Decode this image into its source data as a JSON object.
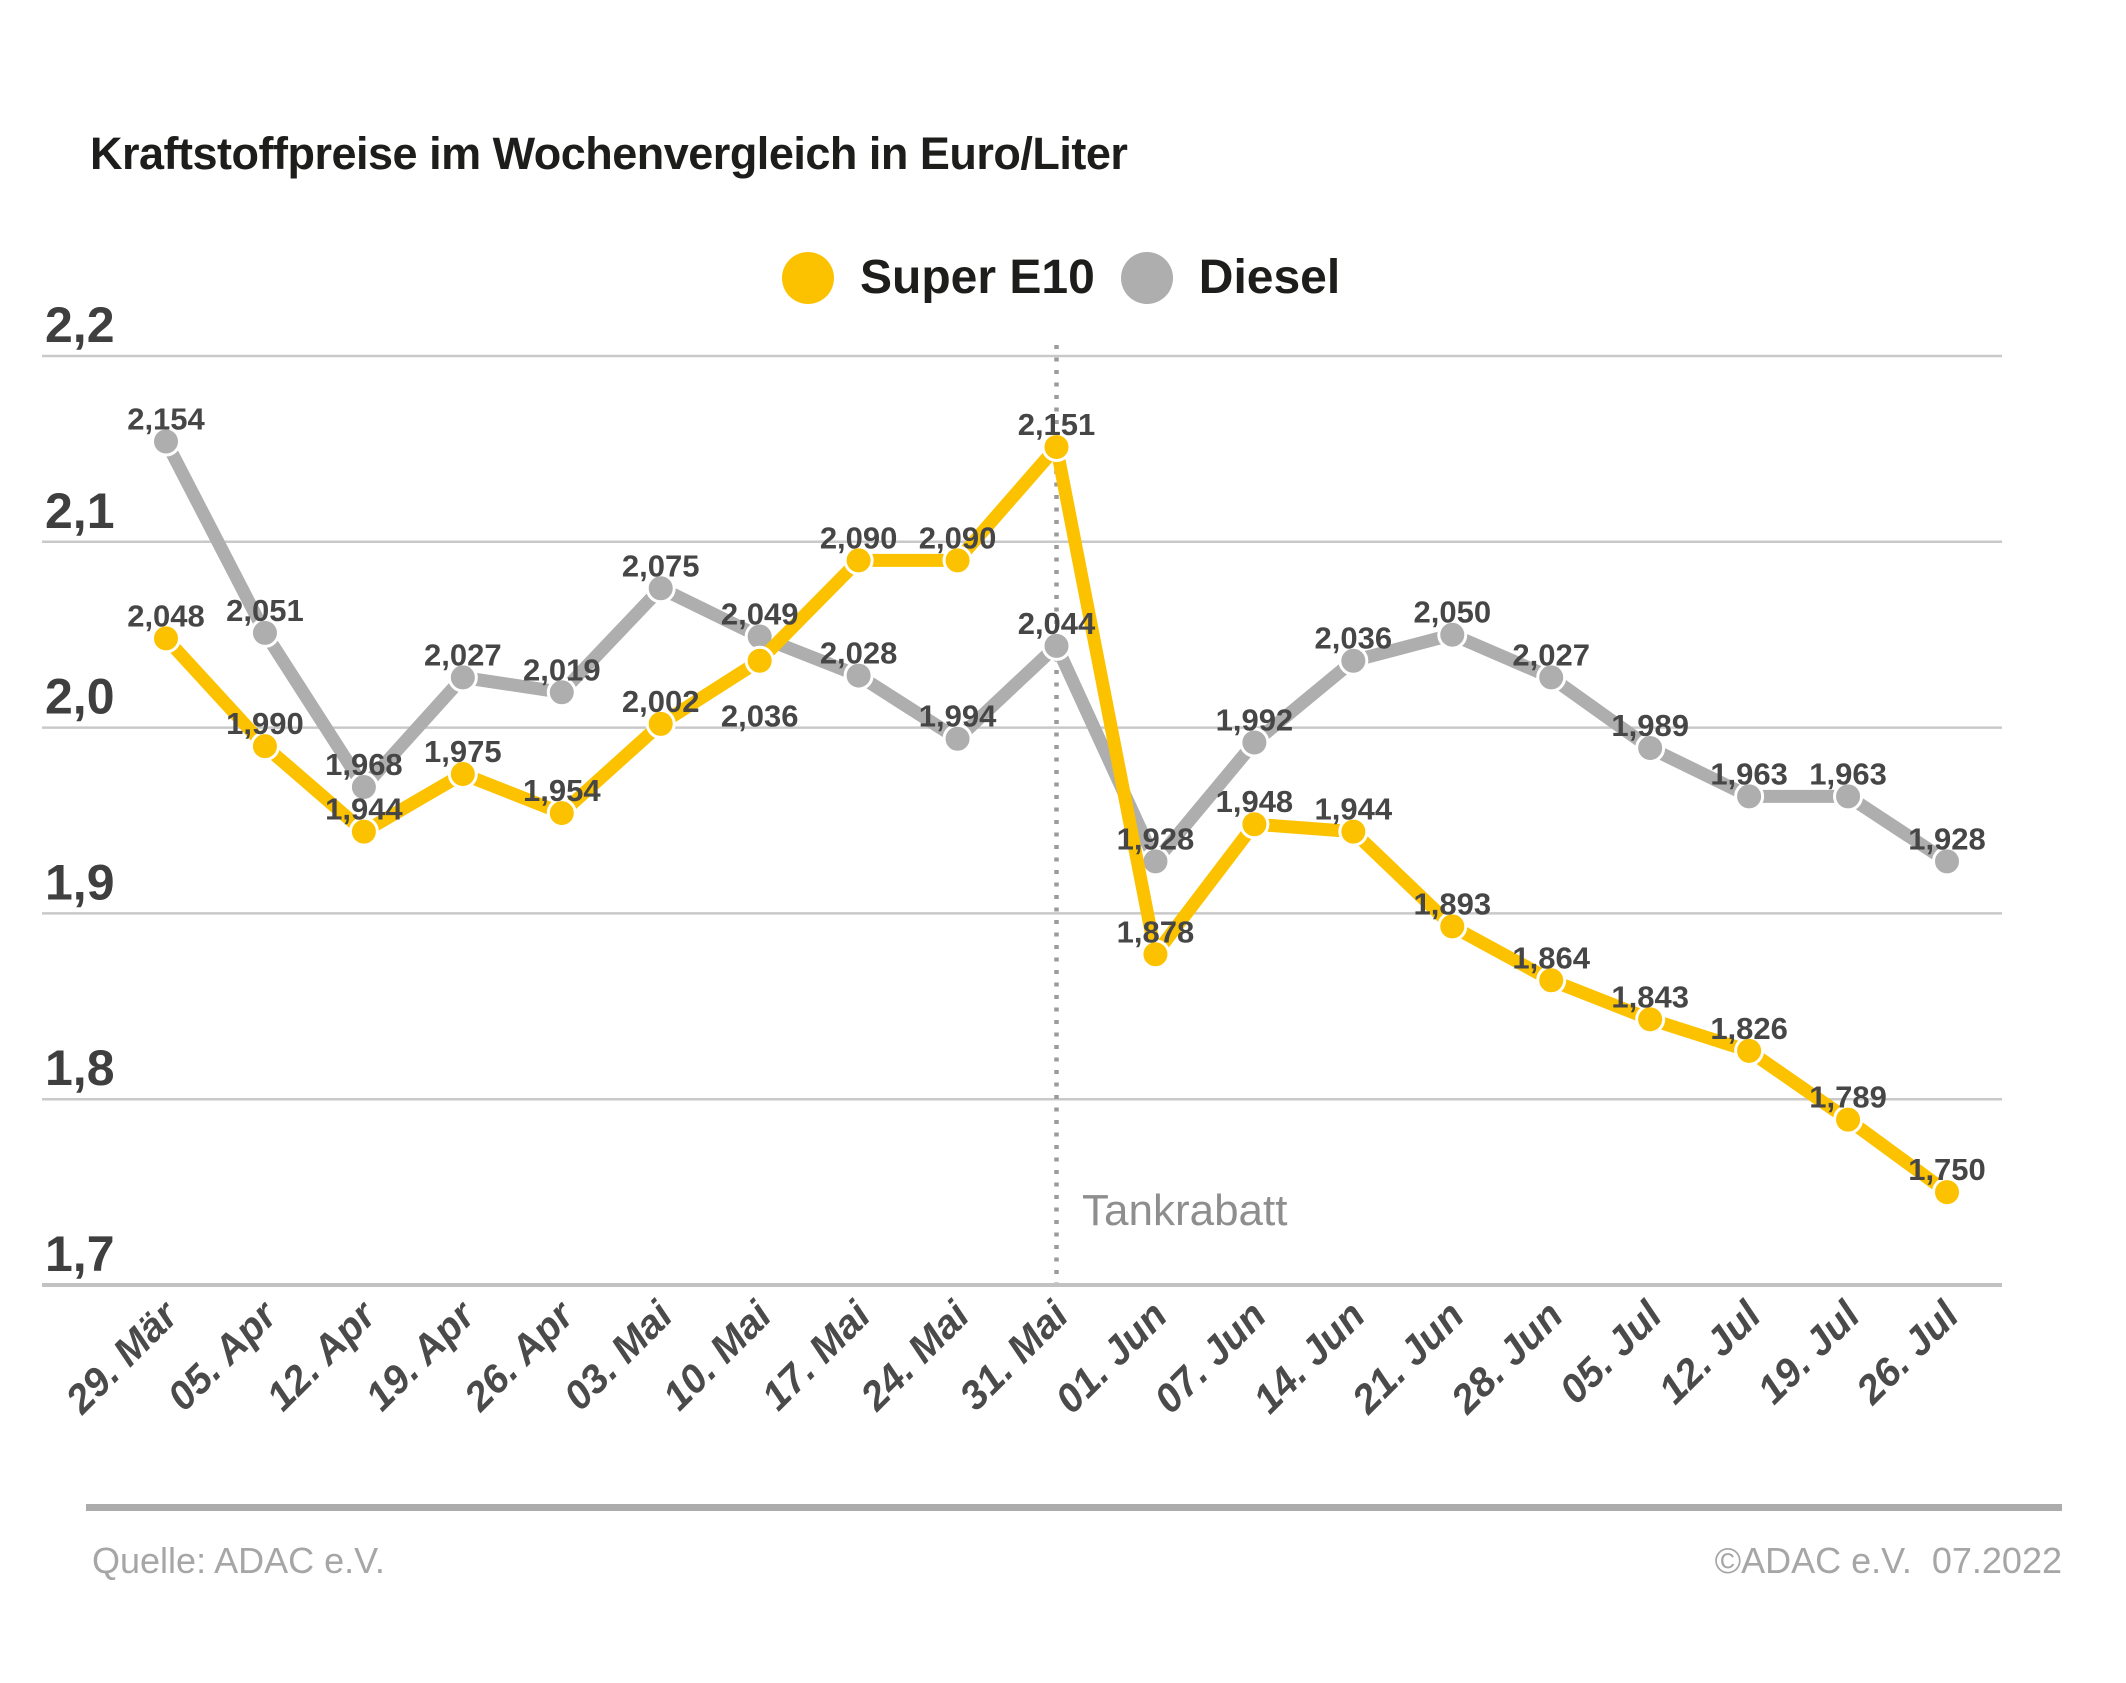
{
  "chart_data": {
    "type": "line",
    "title": "Kraftstoffpreise im Wochenvergleich in Euro/Liter",
    "categories": [
      "29. Mär",
      "05. Apr",
      "12. Apr",
      "19. Apr",
      "26. Apr",
      "03. Mai",
      "10. Mai",
      "17. Mai",
      "24. Mai",
      "31. Mai",
      "01. Jun",
      "07. Jun",
      "14. Jun",
      "21. Jun",
      "28. Jun",
      "05. Jul",
      "12. Jul",
      "19. Jul",
      "26. Jul"
    ],
    "series": [
      {
        "name": "Super E10",
        "color": "#fcc200",
        "values": [
          2.048,
          1.99,
          1.944,
          1.975,
          1.954,
          2.002,
          2.036,
          2.09,
          2.09,
          2.151,
          1.878,
          1.948,
          1.944,
          1.893,
          1.864,
          1.843,
          1.826,
          1.789,
          1.75
        ],
        "label_below_indices": [
          6
        ]
      },
      {
        "name": "Diesel",
        "color": "#aeaeae",
        "values": [
          2.154,
          2.051,
          1.968,
          2.027,
          2.019,
          2.075,
          2.049,
          2.028,
          1.994,
          2.044,
          1.928,
          1.992,
          2.036,
          2.05,
          2.027,
          1.989,
          1.963,
          1.963,
          1.928
        ],
        "label_below_indices": []
      }
    ],
    "yticks": {
      "values": [
        2.2,
        2.1,
        2.0,
        1.9,
        1.8,
        1.7
      ],
      "labels": [
        "2,2",
        "2,1",
        "2,0",
        "1,9",
        "1,8",
        "1,7"
      ]
    },
    "ylim": [
      1.7,
      2.2
    ],
    "grid": true,
    "legend_position": "top-center",
    "value_labels": true,
    "decimal_format": "comma",
    "annotation": {
      "label": "Tankrabatt",
      "category": "31. Mai"
    },
    "colors": {
      "grid": "#c9c9c9",
      "axis_bottom": "#c2c2c2",
      "dotted_line": "#9b9b9b",
      "value_label": "#464646",
      "ytick_label": "#3f3f3f",
      "xtick_label": "#4a4a4a"
    }
  },
  "footer": {
    "source": "Quelle: ADAC e.V.",
    "copyright": "©ADAC e.V.  07.2022"
  }
}
